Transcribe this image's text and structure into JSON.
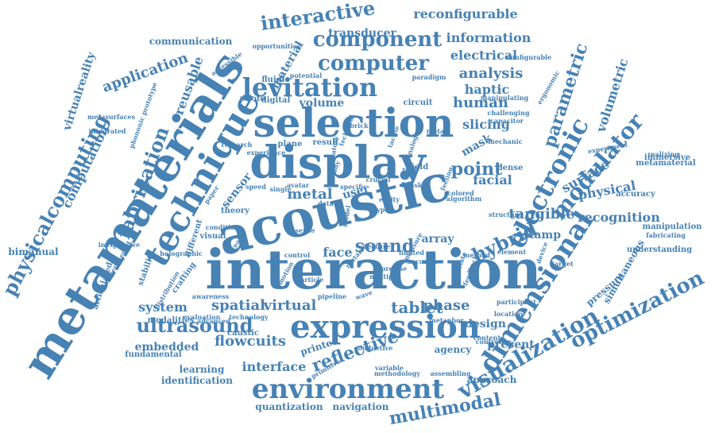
{
  "color": "#4682b4",
  "background": "#ffffff",
  "words": [
    {
      "text": "interaction"
    },
    {
      "text": "acoustic"
    },
    {
      "text": "display"
    },
    {
      "text": "selection"
    },
    {
      "text": "metamaterials"
    },
    {
      "text": "technique"
    },
    {
      "text": "expression"
    },
    {
      "text": "environment"
    },
    {
      "text": "electronic"
    },
    {
      "text": "dimensional"
    },
    {
      "text": "levitation"
    },
    {
      "text": "component"
    },
    {
      "text": "computer"
    },
    {
      "text": "visualization"
    },
    {
      "text": "optimization"
    },
    {
      "text": "modulator"
    },
    {
      "text": "ultrasound"
    },
    {
      "text": "physicalcomputing"
    },
    {
      "text": "fabrication"
    },
    {
      "text": "interactive"
    },
    {
      "text": "parametric"
    },
    {
      "text": "multimodal"
    },
    {
      "text": "reflective"
    },
    {
      "text": "tangible"
    },
    {
      "text": "hybrid"
    },
    {
      "text": "sound"
    },
    {
      "text": "point"
    },
    {
      "text": "tablet"
    },
    {
      "text": "spatial"
    },
    {
      "text": "virtual"
    },
    {
      "text": "system"
    },
    {
      "text": "analysis"
    },
    {
      "text": "application"
    },
    {
      "text": "computation"
    },
    {
      "text": "flowcuits"
    },
    {
      "text": "metal"
    },
    {
      "text": "face"
    },
    {
      "text": "phase"
    },
    {
      "text": "interface"
    },
    {
      "text": "surface"
    },
    {
      "text": "human"
    },
    {
      "text": "volume"
    },
    {
      "text": "haptic"
    },
    {
      "text": "slicing"
    },
    {
      "text": "mask"
    },
    {
      "text": "facial"
    },
    {
      "text": "information"
    },
    {
      "text": "reconfigurable"
    },
    {
      "text": "electrical"
    },
    {
      "text": "physical"
    },
    {
      "text": "recognition"
    },
    {
      "text": "volumetric"
    },
    {
      "text": "stamp"
    },
    {
      "text": "reusable"
    },
    {
      "text": "virtualreality"
    },
    {
      "text": "sensor"
    },
    {
      "text": "array"
    },
    {
      "text": "design"
    },
    {
      "text": "embedded"
    },
    {
      "text": "present"
    },
    {
      "text": "material"
    },
    {
      "text": "user"
    },
    {
      "text": "transducer"
    },
    {
      "text": "communication"
    },
    {
      "text": "simultaneous"
    },
    {
      "text": "pressure"
    },
    {
      "text": "bimanual"
    },
    {
      "text": "printed"
    },
    {
      "text": "learning"
    },
    {
      "text": "identification"
    },
    {
      "text": "quantization"
    },
    {
      "text": "navigation"
    },
    {
      "text": "agency"
    },
    {
      "text": "approach"
    },
    {
      "text": "immersive"
    },
    {
      "text": "metamaterial"
    },
    {
      "text": "accuracy"
    },
    {
      "text": "manipulation"
    },
    {
      "text": "understanding"
    },
    {
      "text": "fluidic"
    },
    {
      "text": "digital"
    },
    {
      "text": "circuit"
    },
    {
      "text": "field"
    },
    {
      "text": "dense"
    },
    {
      "text": "stability"
    },
    {
      "text": "crafting"
    },
    {
      "text": "modalities"
    },
    {
      "text": "technology"
    },
    {
      "text": "caustic"
    },
    {
      "text": "fundamental"
    },
    {
      "text": "different"
    },
    {
      "text": "theory"
    },
    {
      "text": "visual"
    },
    {
      "text": "holographic"
    },
    {
      "text": "inexpensive"
    },
    {
      "text": "articulated"
    },
    {
      "text": "experimental"
    },
    {
      "text": "integrated"
    },
    {
      "text": "metasurfaces"
    },
    {
      "text": "phononic prototype"
    },
    {
      "text": "accessible"
    },
    {
      "text": "opportunities"
    },
    {
      "text": "potential"
    },
    {
      "text": "photo"
    },
    {
      "text": "plane"
    },
    {
      "text": "result"
    },
    {
      "text": "research"
    },
    {
      "text": "experience"
    },
    {
      "text": "speed"
    },
    {
      "text": "paper"
    },
    {
      "text": "reality"
    },
    {
      "text": "data"
    },
    {
      "text": "sense"
    },
    {
      "text": "control"
    },
    {
      "text": "particle"
    },
    {
      "text": "pipeline"
    },
    {
      "text": "wave"
    },
    {
      "text": "precise"
    },
    {
      "text": "multiple"
    },
    {
      "text": "feedback"
    },
    {
      "text": "device"
    },
    {
      "text": "target"
    },
    {
      "text": "method"
    },
    {
      "text": "element"
    },
    {
      "text": "realizing"
    },
    {
      "text": "fabricating"
    },
    {
      "text": "configurable"
    },
    {
      "text": "ergonomic"
    },
    {
      "text": "manipulating"
    },
    {
      "text": "paradigm"
    },
    {
      "text": "challenging"
    },
    {
      "text": "capacitor"
    },
    {
      "text": "mechanic"
    },
    {
      "text": "experiment"
    },
    {
      "text": "structure"
    },
    {
      "text": "algorithm"
    },
    {
      "text": "colored"
    },
    {
      "text": "specific"
    },
    {
      "text": "crystal"
    },
    {
      "text": "task"
    },
    {
      "text": "meta"
    },
    {
      "text": "avatar"
    },
    {
      "text": "single"
    },
    {
      "text": "content"
    },
    {
      "text": "location"
    },
    {
      "text": "participant"
    },
    {
      "text": "metaphor"
    },
    {
      "text": "controller"
    },
    {
      "text": "conductive"
    },
    {
      "text": "methodology"
    },
    {
      "text": "variable"
    },
    {
      "text": "assembling"
    },
    {
      "text": "primitive"
    },
    {
      "text": "evaluation"
    },
    {
      "text": "advanced"
    },
    {
      "text": "condition"
    },
    {
      "text": "emotion"
    },
    {
      "text": "awareness"
    },
    {
      "text": "distribution"
    },
    {
      "text": "mutable"
    },
    {
      "text": "articulate"
    },
    {
      "text": "accurate"
    },
    {
      "text": "crucial"
    },
    {
      "text": "technical"
    },
    {
      "text": "study"
    },
    {
      "text": "type"
    },
    {
      "text": "entity"
    },
    {
      "text": "brick"
    },
    {
      "text": "tactile"
    },
    {
      "text": "limited"
    },
    {
      "text": "feeling"
    },
    {
      "text": "measure"
    },
    {
      "text": "analog"
    },
    {
      "text": "feature"
    },
    {
      "text": "real"
    },
    {
      "text": "model"
    },
    {
      "text": "combinatory"
    },
    {
      "text": "exploration"
    }
  ]
}
